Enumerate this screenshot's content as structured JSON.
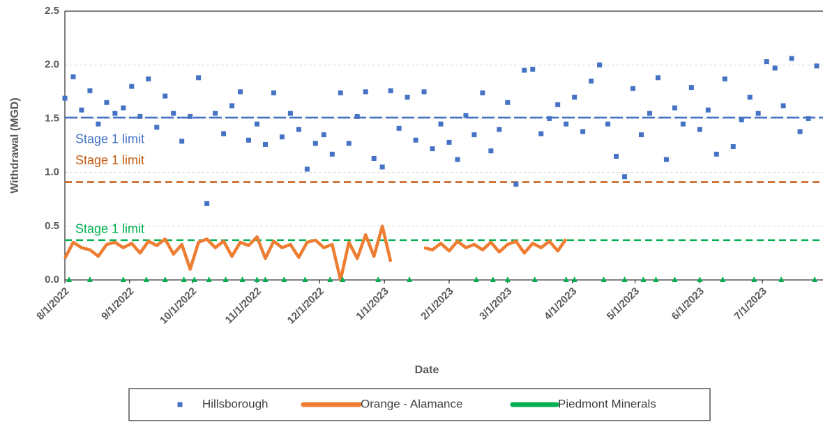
{
  "chart_data": {
    "type": "scatter",
    "xlabel": "Date",
    "ylabel": "Withdrawal (MGD)",
    "xlim": [
      "2022-08-01",
      "2023-07-30"
    ],
    "xticks": [
      {
        "value": "2022-08-01",
        "label": "8/1/2022"
      },
      {
        "value": "2022-09-01",
        "label": "9/1/2022"
      },
      {
        "value": "2022-10-01",
        "label": "10/1/2022"
      },
      {
        "value": "2022-11-01",
        "label": "11/1/2022"
      },
      {
        "value": "2022-12-01",
        "label": "12/1/2022"
      },
      {
        "value": "2023-01-01",
        "label": "1/1/2023"
      },
      {
        "value": "2023-02-01",
        "label": "2/1/2023"
      },
      {
        "value": "2023-03-01",
        "label": "3/1/2023"
      },
      {
        "value": "2023-04-01",
        "label": "4/1/2023"
      },
      {
        "value": "2023-05-01",
        "label": "5/1/2023"
      },
      {
        "value": "2023-06-01",
        "label": "6/1/2023"
      },
      {
        "value": "2023-07-01",
        "label": "7/1/2023"
      }
    ],
    "ylim": [
      0,
      2.5
    ],
    "yticks": [
      {
        "value": 0,
        "label": "0.0"
      },
      {
        "value": 0.5,
        "label": "0.5"
      },
      {
        "value": 1,
        "label": "1.0"
      },
      {
        "value": 1.5,
        "label": "1.5"
      },
      {
        "value": 2,
        "label": "2.0"
      },
      {
        "value": 2.5,
        "label": "2.5"
      }
    ],
    "grid": true,
    "legend": "bottom",
    "series": [
      {
        "name": "Hillsborough",
        "color": "#4472c4",
        "marker": "square",
        "x": [
          "2022-08-01",
          "2022-08-05",
          "2022-08-09",
          "2022-08-13",
          "2022-08-17",
          "2022-08-21",
          "2022-08-25",
          "2022-08-29",
          "2022-09-02",
          "2022-09-06",
          "2022-09-10",
          "2022-09-14",
          "2022-09-18",
          "2022-09-22",
          "2022-09-26",
          "2022-09-30",
          "2022-10-04",
          "2022-10-08",
          "2022-10-12",
          "2022-10-16",
          "2022-10-20",
          "2022-10-24",
          "2022-10-28",
          "2022-11-01",
          "2022-11-05",
          "2022-11-09",
          "2022-11-13",
          "2022-11-17",
          "2022-11-21",
          "2022-11-25",
          "2022-11-29",
          "2022-12-03",
          "2022-12-07",
          "2022-12-11",
          "2022-12-15",
          "2022-12-19",
          "2022-12-23",
          "2022-12-27",
          "2022-12-31",
          "2023-01-04",
          "2023-01-08",
          "2023-01-12",
          "2023-01-16",
          "2023-01-20",
          "2023-01-24",
          "2023-01-28",
          "2023-02-01",
          "2023-02-05",
          "2023-02-09",
          "2023-02-13",
          "2023-02-17",
          "2023-02-21",
          "2023-02-25",
          "2023-03-01",
          "2023-03-05",
          "2023-03-09",
          "2023-03-13",
          "2023-03-17",
          "2023-03-21",
          "2023-03-25",
          "2023-03-29",
          "2023-04-02",
          "2023-04-06",
          "2023-04-10",
          "2023-04-14",
          "2023-04-18",
          "2023-04-22",
          "2023-04-26",
          "2023-04-30",
          "2023-05-04",
          "2023-05-08",
          "2023-05-12",
          "2023-05-16",
          "2023-05-20",
          "2023-05-24",
          "2023-05-28",
          "2023-06-01",
          "2023-06-05",
          "2023-06-09",
          "2023-06-13",
          "2023-06-17",
          "2023-06-21",
          "2023-06-25",
          "2023-06-29",
          "2023-07-03",
          "2023-07-07",
          "2023-07-11",
          "2023-07-15",
          "2023-07-19",
          "2023-07-23",
          "2023-07-27"
        ],
        "values": [
          1.69,
          1.89,
          1.58,
          1.76,
          1.45,
          1.65,
          1.55,
          1.6,
          1.8,
          1.52,
          1.87,
          1.42,
          1.71,
          1.55,
          1.29,
          1.52,
          1.88,
          0.71,
          1.55,
          1.36,
          1.62,
          1.75,
          1.3,
          1.45,
          1.26,
          1.74,
          1.33,
          1.55,
          1.4,
          1.03,
          1.27,
          1.35,
          1.17,
          1.74,
          1.27,
          1.52,
          1.75,
          1.13,
          1.05,
          1.76,
          1.41,
          1.7,
          1.3,
          1.75,
          1.22,
          1.45,
          1.28,
          1.12,
          1.53,
          1.35,
          1.74,
          1.2,
          1.4,
          1.65,
          0.89,
          1.95,
          1.96,
          1.36,
          1.5,
          1.63,
          1.45,
          1.7,
          1.38,
          1.85,
          2.0,
          1.45,
          1.15,
          0.96,
          1.78,
          1.35,
          1.55,
          1.88,
          1.12,
          1.6,
          1.45,
          1.79,
          1.4,
          1.58,
          1.17,
          1.87,
          1.24,
          1.49,
          1.7,
          1.55,
          2.03,
          1.97,
          1.62,
          2.06,
          1.38,
          1.5,
          1.99
        ]
      },
      {
        "name": "Orange - Alamance",
        "color": "#ed7d31",
        "marker": "line",
        "x": [
          "2022-08-01",
          "2022-08-05",
          "2022-08-09",
          "2022-08-13",
          "2022-08-17",
          "2022-08-21",
          "2022-08-25",
          "2022-08-29",
          "2022-09-02",
          "2022-09-06",
          "2022-09-10",
          "2022-09-14",
          "2022-09-18",
          "2022-09-22",
          "2022-09-26",
          "2022-09-30",
          "2022-10-04",
          "2022-10-08",
          "2022-10-12",
          "2022-10-16",
          "2022-10-20",
          "2022-10-24",
          "2022-10-28",
          "2022-11-01",
          "2022-11-05",
          "2022-11-09",
          "2022-11-13",
          "2022-11-17",
          "2022-11-21",
          "2022-11-25",
          "2022-11-29",
          "2022-12-03",
          "2022-12-07",
          "2022-12-11",
          "2022-12-15",
          "2022-12-19",
          "2022-12-23",
          "2022-12-27",
          "2022-12-31",
          "2023-01-04",
          "2023-01-08",
          "2023-01-12",
          "2023-01-16",
          "2023-01-20",
          "2023-01-24",
          "2023-01-28",
          "2023-02-01",
          "2023-02-05",
          "2023-02-09",
          "2023-02-13",
          "2023-02-17",
          "2023-02-21",
          "2023-02-25",
          "2023-03-01",
          "2023-03-05",
          "2023-03-09",
          "2023-03-13",
          "2023-03-17",
          "2023-03-21",
          "2023-03-25",
          "2023-03-29"
        ],
        "values": [
          0.2,
          0.35,
          0.3,
          0.28,
          0.22,
          0.33,
          0.35,
          0.3,
          0.34,
          0.25,
          0.36,
          0.32,
          0.38,
          0.24,
          0.33,
          0.1,
          0.35,
          0.38,
          0.3,
          0.36,
          0.22,
          0.35,
          0.32,
          0.4,
          0.2,
          0.36,
          0.3,
          0.33,
          0.21,
          0.35,
          0.37,
          0.3,
          0.33,
          0.0,
          0.35,
          0.2,
          0.42,
          0.22,
          0.5,
          0.17,
          null,
          null,
          null,
          0.3,
          0.28,
          0.34,
          0.27,
          0.36,
          0.3,
          0.33,
          0.28,
          0.35,
          0.26,
          0.33,
          0.36,
          0.25,
          0.34,
          0.3,
          0.36,
          0.27,
          0.38
        ]
      },
      {
        "name": "Piedmont Minerals",
        "color": "#00b050",
        "marker": "triangle",
        "x": [
          "2022-08-03",
          "2022-08-13",
          "2022-08-29",
          "2022-09-09",
          "2022-09-18",
          "2022-09-27",
          "2022-10-02",
          "2022-10-09",
          "2022-10-17",
          "2022-10-25",
          "2022-11-01",
          "2022-11-05",
          "2022-11-14",
          "2022-11-24",
          "2022-12-06",
          "2022-12-12",
          "2022-12-29",
          "2023-01-13",
          "2023-02-14",
          "2023-02-22",
          "2023-03-01",
          "2023-03-14",
          "2023-03-29",
          "2023-04-02",
          "2023-04-16",
          "2023-04-26",
          "2023-05-05",
          "2023-05-11",
          "2023-05-20",
          "2023-06-01",
          "2023-06-12",
          "2023-06-27",
          "2023-07-10",
          "2023-07-26"
        ],
        "values": [
          0,
          0,
          0,
          0,
          0,
          0,
          0,
          0,
          0,
          0,
          0,
          0,
          0,
          0,
          0,
          0,
          0,
          0,
          0,
          0,
          0,
          0,
          0,
          0,
          0,
          0,
          0,
          0,
          0,
          0,
          0,
          0,
          0,
          0
        ]
      }
    ],
    "limits": [
      {
        "label": "Stage 1 limit",
        "value": 1.51,
        "color": "#4472c4"
      },
      {
        "label": "Stage 1 limit",
        "value": 0.91,
        "color": "#c55a11"
      },
      {
        "label": "Stage 1 limit",
        "value": 0.37,
        "color": "#00b050"
      }
    ]
  }
}
